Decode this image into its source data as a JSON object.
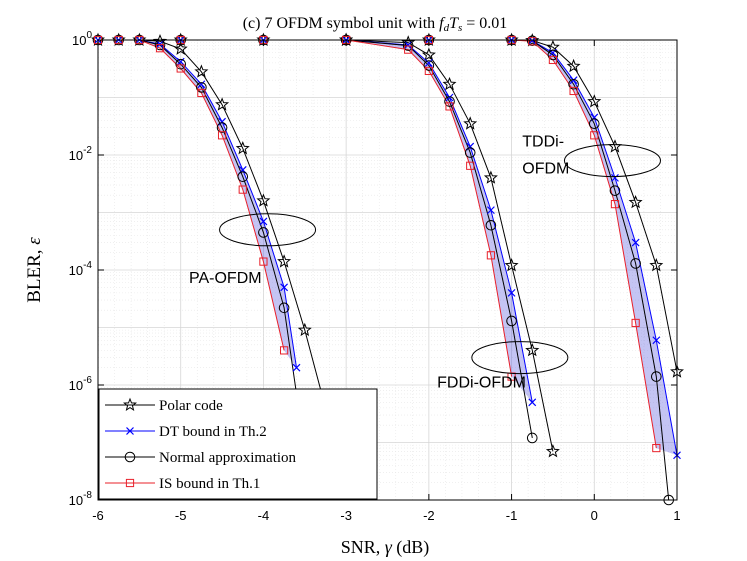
{
  "chart_data": {
    "type": "line",
    "title": "(c) 7 OFDM symbol unit with f_dT_s = 0.01",
    "xlabel": "SNR, γ (dB)",
    "ylabel": "BLER, ε",
    "xlim": [
      -6,
      1
    ],
    "ylim": [
      1e-08,
      1
    ],
    "yscale": "log",
    "grid": true,
    "legend_position": "bottom-left",
    "xticks": [
      "-6",
      "-5",
      "-4",
      "-3",
      "-2",
      "-1",
      "0",
      "1"
    ],
    "yticks": [
      {
        "base": "10",
        "exp": "0"
      },
      {
        "base": "10",
        "exp": "-2"
      },
      {
        "base": "10",
        "exp": "-4"
      },
      {
        "base": "10",
        "exp": "-6"
      },
      {
        "base": "10",
        "exp": "-8"
      }
    ],
    "annotations": [
      {
        "text": "PA-OFDM",
        "x": -4.9,
        "y": 6e-05
      },
      {
        "text": "FDDi-OFDM",
        "x": -1.9,
        "y": 9e-07
      },
      {
        "text": "TDDi-",
        "x": 0.0,
        "y": 0.014
      },
      {
        "text": "OFDM",
        "x": 0.0,
        "y": 0.0048
      }
    ],
    "ellipses": [
      {
        "x": -3.95,
        "y": 0.0005
      },
      {
        "x": -0.9,
        "y": 3e-06
      },
      {
        "x": 0.22,
        "y": 0.008
      }
    ],
    "legend": [
      "Polar code",
      "DT bound in Th.2",
      "Normal approximation",
      "IS bound in Th.1"
    ],
    "groups": [
      {
        "name": "PA-OFDM",
        "series": [
          {
            "name": "Polar code",
            "color": "#000000",
            "marker": "star",
            "x": [
              -6,
              -5.75,
              -5.5,
              -5.25,
              -5,
              -4.75,
              -4.5,
              -4.25,
              -4,
              -3.75,
              -3.5,
              -3.25
            ],
            "y": [
              1,
              1,
              1,
              0.95,
              0.7,
              0.28,
              0.075,
              0.013,
              0.0016,
              0.00014,
              9e-06,
              4e-07
            ]
          },
          {
            "name": "DT bound in Th.2",
            "color": "#0000ff",
            "marker": "x",
            "x": [
              -6,
              -5.75,
              -5.5,
              -5.25,
              -5,
              -4.75,
              -4.5,
              -4.25,
              -4,
              -3.75,
              -3.6
            ],
            "y": [
              1,
              1,
              1,
              0.85,
              0.42,
              0.17,
              0.038,
              0.0055,
              0.0007,
              5e-05,
              2e-06
            ]
          },
          {
            "name": "Normal approximation",
            "color": "#000000",
            "marker": "circle",
            "x": [
              -6,
              -5.75,
              -5.5,
              -5.25,
              -5,
              -4.75,
              -4.5,
              -4.25,
              -4,
              -3.75,
              -3.6
            ],
            "y": [
              1,
              1,
              1,
              0.82,
              0.38,
              0.15,
              0.03,
              0.0042,
              0.00045,
              2.2e-05,
              7e-07
            ]
          },
          {
            "name": "IS bound in Th.1",
            "color": "#e8202a",
            "marker": "square",
            "x": [
              -6,
              -5.75,
              -5.5,
              -5.25,
              -5,
              -4.75,
              -4.5,
              -4.25,
              -4,
              -3.75
            ],
            "y": [
              1,
              1,
              1,
              0.72,
              0.32,
              0.12,
              0.022,
              0.0025,
              0.00014,
              4e-06
            ]
          }
        ]
      },
      {
        "name": "FDDi-OFDM",
        "series": [
          {
            "name": "Polar code",
            "color": "#000000",
            "marker": "star",
            "x": [
              -5,
              -4,
              -3,
              -2.25,
              -2,
              -1.75,
              -1.5,
              -1.25,
              -1,
              -0.75,
              -0.5
            ],
            "y": [
              1,
              1,
              1,
              0.9,
              0.55,
              0.17,
              0.035,
              0.004,
              0.00012,
              4e-06,
              7e-08
            ]
          },
          {
            "name": "DT bound in Th.2",
            "color": "#0000ff",
            "marker": "x",
            "x": [
              -5,
              -4,
              -3,
              -2.25,
              -2,
              -1.75,
              -1.5,
              -1.25,
              -1,
              -0.75
            ],
            "y": [
              1,
              1,
              1,
              0.82,
              0.4,
              0.1,
              0.014,
              0.0011,
              4e-05,
              5e-07
            ]
          },
          {
            "name": "Normal approximation",
            "color": "#000000",
            "marker": "circle",
            "x": [
              -5,
              -4,
              -3,
              -2.25,
              -2,
              -1.75,
              -1.5,
              -1.25,
              -1,
              -0.75
            ],
            "y": [
              1,
              1,
              1,
              0.8,
              0.36,
              0.085,
              0.011,
              0.0006,
              1.3e-05,
              1.2e-07
            ]
          },
          {
            "name": "IS bound in Th.1",
            "color": "#e8202a",
            "marker": "square",
            "x": [
              -5,
              -4,
              -3,
              -2.25,
              -2,
              -1.75,
              -1.5,
              -1.25,
              -1
            ],
            "y": [
              1,
              1,
              1,
              0.68,
              0.29,
              0.07,
              0.0065,
              0.00018,
              1.4e-06
            ]
          }
        ]
      },
      {
        "name": "TDDi-OFDM",
        "series": [
          {
            "name": "Polar code",
            "color": "#000000",
            "marker": "star",
            "x": [
              -3,
              -2,
              -1,
              -0.75,
              -0.5,
              -0.25,
              0,
              0.25,
              0.5,
              0.75,
              1
            ],
            "y": [
              1,
              1,
              1,
              0.98,
              0.75,
              0.35,
              0.085,
              0.014,
              0.0015,
              0.00012,
              1.7e-06
            ]
          },
          {
            "name": "DT bound in Th.2",
            "color": "#0000ff",
            "marker": "x",
            "x": [
              -3,
              -2,
              -1,
              -0.75,
              -0.5,
              -0.25,
              0,
              0.25,
              0.5,
              0.75,
              1
            ],
            "y": [
              1,
              1,
              1,
              0.97,
              0.6,
              0.2,
              0.045,
              0.004,
              0.0003,
              6e-06,
              6e-08
            ]
          },
          {
            "name": "Normal approximation",
            "color": "#000000",
            "marker": "circle",
            "x": [
              -3,
              -2,
              -1,
              -0.75,
              -0.5,
              -0.25,
              0,
              0.25,
              0.5,
              0.75,
              0.9
            ],
            "y": [
              1,
              1,
              1,
              0.97,
              0.55,
              0.17,
              0.035,
              0.0024,
              0.00013,
              1.4e-06,
              1e-08
            ]
          },
          {
            "name": "IS bound in Th.1",
            "color": "#e8202a",
            "marker": "square",
            "x": [
              -3,
              -2,
              -1,
              -0.75,
              -0.5,
              -0.25,
              0,
              0.25,
              0.5,
              0.75
            ],
            "y": [
              1,
              1,
              1,
              0.95,
              0.45,
              0.13,
              0.022,
              0.0014,
              1.2e-05,
              8e-08
            ]
          }
        ]
      }
    ]
  }
}
